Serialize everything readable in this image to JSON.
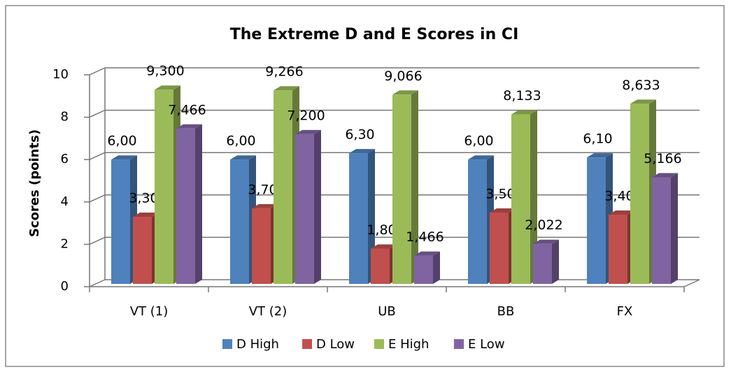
{
  "chart_data": {
    "type": "bar3d",
    "title": "The Extreme D and E Scores in CI",
    "y_label": "Scores (points)",
    "categories": [
      "VT (1)",
      "VT (2)",
      "UB",
      "BB",
      "FX"
    ],
    "series": [
      {
        "name": "D High",
        "color": "#4f81bd",
        "values": [
          6.0,
          6.0,
          6.3,
          6.0,
          6.1
        ],
        "value_labels": [
          "6,00",
          "6,00",
          "6,30",
          "6,00",
          "6,10"
        ]
      },
      {
        "name": "D Low",
        "color": "#c0504d",
        "values": [
          3.3,
          3.7,
          1.8,
          3.5,
          3.4
        ],
        "value_labels": [
          "3,30",
          "3,70",
          "1,80",
          "3,50",
          "3,40"
        ]
      },
      {
        "name": "E High",
        "color": "#9bbb59",
        "values": [
          9.3,
          9.266,
          9.066,
          8.133,
          8.633
        ],
        "value_labels": [
          "9,300",
          "9,266",
          "9,066",
          "8,133",
          "8,633"
        ]
      },
      {
        "name": "E Low",
        "color": "#8064a2",
        "values": [
          7.466,
          7.2,
          1.466,
          2.022,
          5.166
        ],
        "value_labels": [
          "7,466",
          "7,200",
          "1,466",
          "2,022",
          "5,166"
        ]
      }
    ],
    "ylim": [
      0,
      10
    ],
    "yticks": [
      0,
      2,
      4,
      6,
      8,
      10
    ],
    "grid": true,
    "legend": "bottom"
  }
}
